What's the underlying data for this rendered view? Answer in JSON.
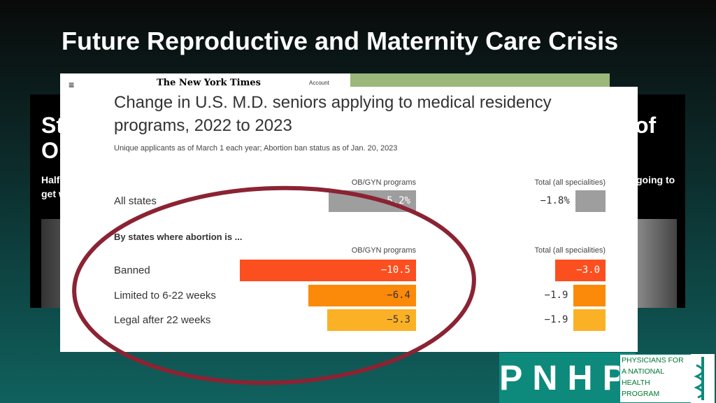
{
  "slide": {
    "title": "Future Reproductive and Maternity Care Crisis",
    "logo": {
      "letters": "PNHP",
      "lines": [
        "PHYSICIANS FOR",
        "A NATIONAL",
        "HEALTH",
        "PROGRAM"
      ]
    }
  },
  "background": {
    "masthead": "The New York Times",
    "account": "Account",
    "left_headline": [
      "State",
      "Ob-G"
    ],
    "left_sub": [
      "Half of US",
      "get worse."
    ],
    "right_headline": "of",
    "right_sub": "going to"
  },
  "chart_data": {
    "type": "bar",
    "orientation": "horizontal",
    "title": "Change in U.S. M.D. seniors applying to medical residency programs, 2022 to 2023",
    "subtitle": "Unique applicants as of March 1 each year; Abortion ban status as of Jan. 20, 2023",
    "section_label": "By states where abortion is ...",
    "categories": [
      "All states",
      "Banned",
      "Limited to 6-22 weeks",
      "Legal after 22 weeks"
    ],
    "colors": [
      "#9e9e9e",
      "#fc4f1f",
      "#fb8a0a",
      "#fbb126"
    ],
    "series": [
      {
        "name": "OB/GYN programs",
        "values": [
          -5.2,
          -10.5,
          -6.4,
          -5.3
        ],
        "value_labels": [
          "−5.2%",
          "−10.5",
          "−6.4",
          "−5.3"
        ]
      },
      {
        "name": "Total (all specialities)",
        "values": [
          -1.8,
          -3.0,
          -1.9,
          -1.9
        ],
        "value_labels": [
          "−1.8%",
          "−3.0",
          "−1.9",
          "−1.9"
        ]
      }
    ]
  }
}
